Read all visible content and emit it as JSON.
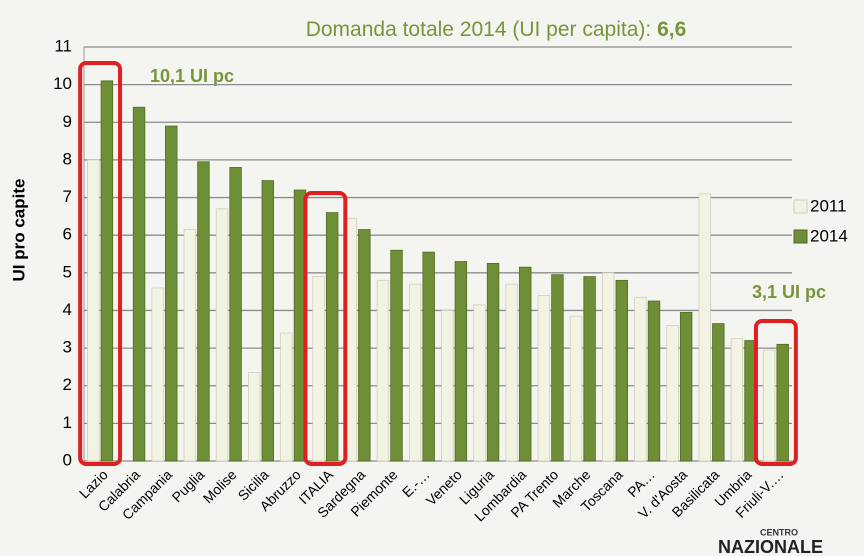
{
  "chart_data": {
    "type": "bar",
    "title": "Domanda totale 2014 (UI per capita): ",
    "title_highlight": "6,6",
    "y_label": "UI pro capite",
    "annotations": [
      "10,1 UI pc",
      "3,1 UI pc"
    ],
    "categories": [
      "Lazio",
      "Calabria",
      "Campania",
      "Puglia",
      "Molise",
      "Sicilia",
      "Abruzzo",
      "ITALIA",
      "Sardegna",
      "Piemonte",
      "E.-…",
      "Veneto",
      "Liguria",
      "Lombardia",
      "PA Trento",
      "Marche",
      "Toscana",
      "PA…",
      "V. d'Aosta",
      "Basilicata",
      "Umbria",
      "Friuli-V.…"
    ],
    "series": [
      {
        "name": "2011",
        "color": "#f3f3e4",
        "values": [
          8.0,
          null,
          4.6,
          6.15,
          6.7,
          2.35,
          3.4,
          4.9,
          6.45,
          4.8,
          4.7,
          4.0,
          4.15,
          4.7,
          4.4,
          3.85,
          5.0,
          4.35,
          3.6,
          7.1,
          3.25,
          2.95
        ]
      },
      {
        "name": "2014",
        "color": "#6e8f35",
        "values": [
          10.1,
          9.4,
          8.9,
          7.95,
          7.8,
          7.45,
          7.2,
          6.6,
          6.15,
          5.6,
          5.55,
          5.3,
          5.25,
          5.15,
          4.95,
          4.9,
          4.8,
          4.25,
          3.95,
          3.65,
          3.2,
          3.1
        ]
      }
    ],
    "ylim": [
      0,
      11
    ],
    "yticks": [
      0,
      1,
      2,
      3,
      4,
      5,
      6,
      7,
      8,
      9,
      10,
      11
    ],
    "grid": true,
    "legend": "right",
    "logo": [
      "CENTRO",
      "NAZIONALE"
    ]
  }
}
